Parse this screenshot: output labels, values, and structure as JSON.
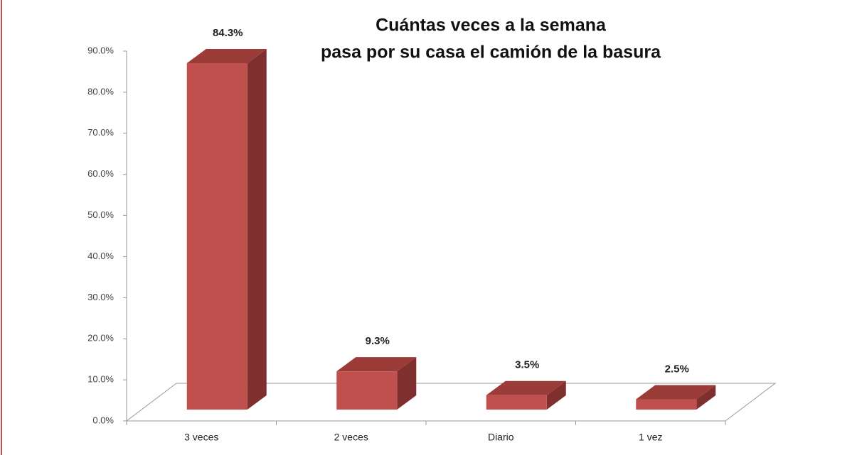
{
  "chart_data": {
    "type": "bar3d",
    "title": [
      "Cuántas veces a la semana",
      "pasa por su casa el camión de la basura"
    ],
    "categories": [
      "3 veces",
      "2 veces",
      "Diario",
      "1 vez"
    ],
    "values": [
      84.3,
      9.3,
      3.5,
      2.5
    ],
    "value_labels": [
      "84.3%",
      "9.3%",
      "3.5%",
      "2.5%"
    ],
    "color": "#c0504d",
    "ylim": [
      0,
      90
    ],
    "yticks": [
      {
        "value": 0,
        "label": "0.0%"
      },
      {
        "value": 10,
        "label": "10.0%"
      },
      {
        "value": 20,
        "label": "20.0%"
      },
      {
        "value": 30,
        "label": "30.0%"
      },
      {
        "value": 40,
        "label": "40.0%"
      },
      {
        "value": 50,
        "label": "50.0%"
      },
      {
        "value": 60,
        "label": "60.0%"
      },
      {
        "value": 70,
        "label": "70.0%"
      },
      {
        "value": 80,
        "label": "80.0%"
      },
      {
        "value": 90,
        "label": "90.0%"
      }
    ]
  }
}
